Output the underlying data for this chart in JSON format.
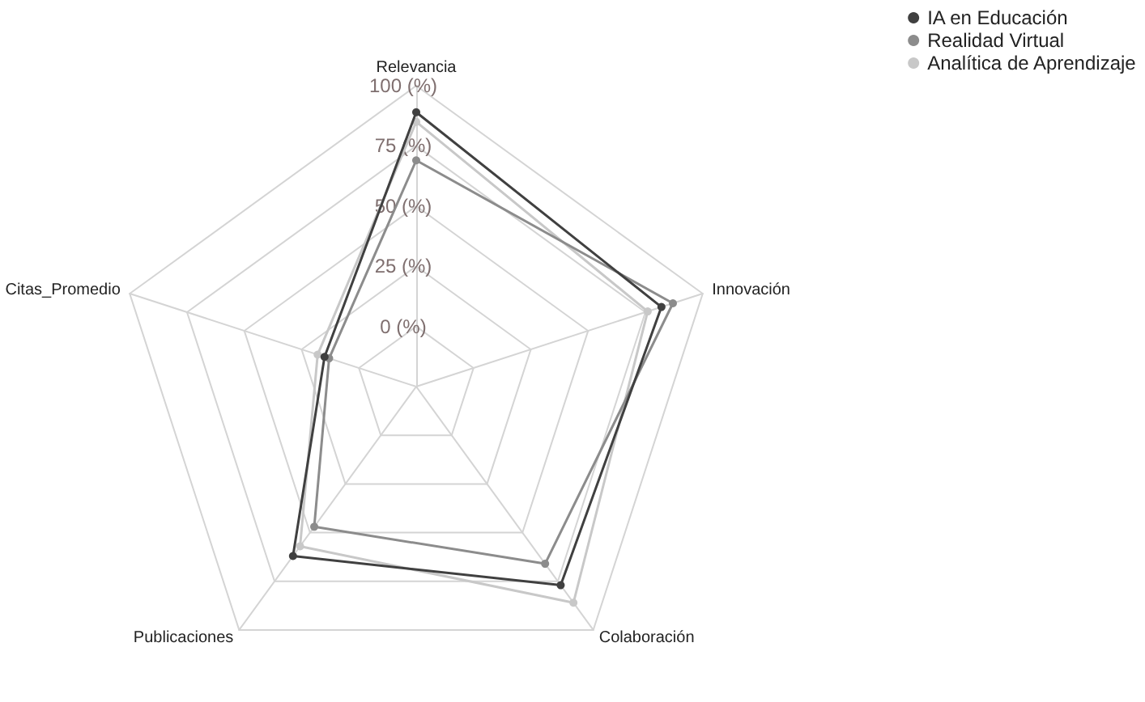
{
  "chart_data": {
    "type": "radar",
    "categories": [
      "Relevancia",
      "Innovación",
      "Colaboración",
      "Publicaciones",
      "Citas_Promedio"
    ],
    "series": [
      {
        "name": "IA en Educación",
        "color": "#404040",
        "values": [
          89,
          82,
          77,
          62,
          15
        ]
      },
      {
        "name": "Realidad Virtual",
        "color": "#8c8c8c",
        "values": [
          69,
          87,
          66,
          47,
          13
        ]
      },
      {
        "name": "Analítica de Aprendizaje",
        "color": "#c8c8c8",
        "values": [
          85,
          76,
          86,
          57,
          18
        ]
      }
    ],
    "ylim": [
      -25,
      100
    ],
    "yticks": [
      {
        "value": 0,
        "label": "0 (%)"
      },
      {
        "value": 25,
        "label": "25 (%)"
      },
      {
        "value": 50,
        "label": "50 (%)"
      },
      {
        "value": 75,
        "label": "75 (%)"
      },
      {
        "value": 100,
        "label": "100 (%)"
      }
    ],
    "grid": true,
    "legend": "top right",
    "marker": "circle",
    "line_style": "solid"
  }
}
